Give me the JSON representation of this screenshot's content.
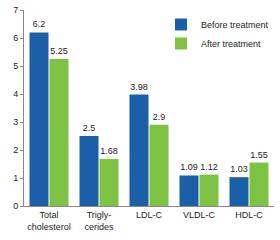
{
  "chart_data": {
    "type": "bar",
    "categories": [
      "Total\ncholesterol",
      "Trigly-\ncerides",
      "LDL-C",
      "VLDL-C",
      "HDL-C"
    ],
    "series": [
      {
        "name": "Before treatment",
        "color": "#1b5fa8",
        "values": [
          6.2,
          2.5,
          3.98,
          1.09,
          1.03
        ]
      },
      {
        "name": "After treatment",
        "color": "#7dc242",
        "values": [
          5.25,
          1.68,
          2.9,
          1.12,
          1.55
        ]
      }
    ],
    "ylim": [
      0,
      7
    ],
    "yticks": [
      0,
      1,
      2,
      3,
      4,
      5,
      6,
      7
    ],
    "grid": false,
    "legend": "top-right",
    "data_labels": true
  }
}
